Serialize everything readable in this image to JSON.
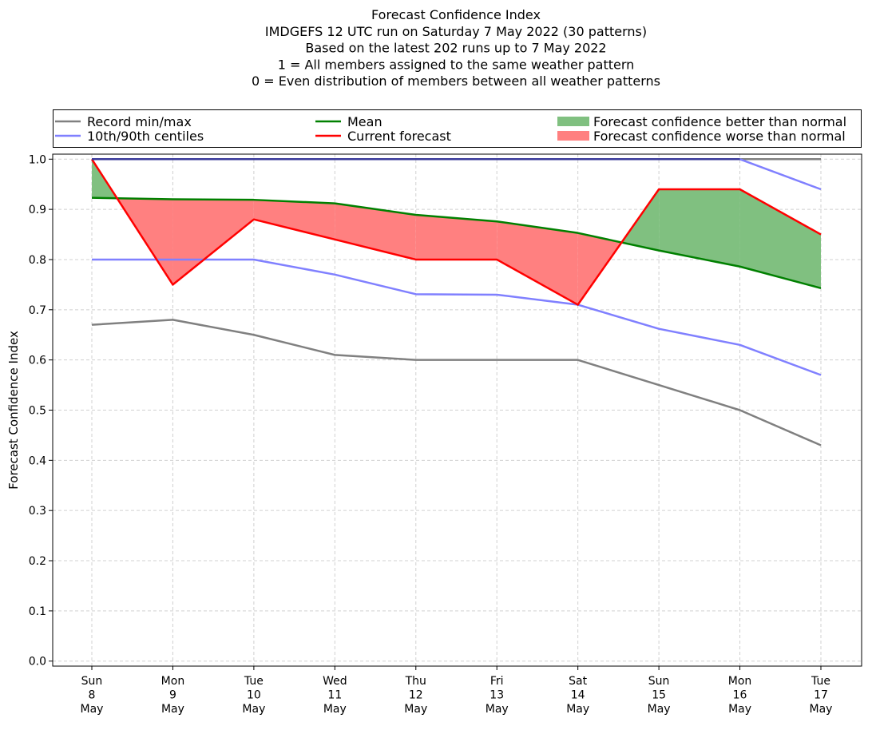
{
  "chart_data": {
    "type": "line",
    "title_lines": [
      "Forecast Confidence Index",
      "IMDGEFS 12 UTC run on Saturday 7 May 2022 (30 patterns)",
      "Based on the latest 202 runs up to 7 May 2022",
      "1 = All members assigned to the same weather pattern",
      "0 = Even distribution of members between all weather patterns"
    ],
    "ylabel": "Forecast Confidence Index",
    "ylim": [
      -0.01,
      1.01
    ],
    "yticks": [
      0.0,
      0.1,
      0.2,
      0.3,
      0.4,
      0.5,
      0.6,
      0.7,
      0.8,
      0.9,
      1.0
    ],
    "ytick_labels": [
      "0.0",
      "0.1",
      "0.2",
      "0.3",
      "0.4",
      "0.5",
      "0.6",
      "0.7",
      "0.8",
      "0.9",
      "1.0"
    ],
    "grid": true,
    "categories": [
      [
        "Sun",
        "8",
        "May"
      ],
      [
        "Mon",
        "9",
        "May"
      ],
      [
        "Tue",
        "10",
        "May"
      ],
      [
        "Wed",
        "11",
        "May"
      ],
      [
        "Thu",
        "12",
        "May"
      ],
      [
        "Fri",
        "13",
        "May"
      ],
      [
        "Sat",
        "14",
        "May"
      ],
      [
        "Sun",
        "15",
        "May"
      ],
      [
        "Mon",
        "16",
        "May"
      ],
      [
        "Tue",
        "17",
        "May"
      ]
    ],
    "series": [
      {
        "name": "Record min/max",
        "role": "record_max",
        "color": "#808080",
        "values": [
          1.0,
          1.0,
          1.0,
          1.0,
          1.0,
          1.0,
          1.0,
          1.0,
          1.0,
          1.0
        ]
      },
      {
        "role": "record_min",
        "color": "#808080",
        "values": [
          0.67,
          0.68,
          0.65,
          0.61,
          0.6,
          0.6,
          0.6,
          0.55,
          0.5,
          0.43
        ]
      },
      {
        "name": "10th/90th centiles",
        "role": "p90",
        "color": "#8080ff",
        "values": [
          1.0,
          1.0,
          1.0,
          1.0,
          1.0,
          1.0,
          1.0,
          1.0,
          1.0,
          0.94
        ]
      },
      {
        "role": "p10",
        "color": "#8080ff",
        "values": [
          0.8,
          0.8,
          0.8,
          0.77,
          0.731,
          0.73,
          0.71,
          0.662,
          0.63,
          0.57
        ]
      },
      {
        "name": "Mean",
        "role": "mean",
        "color": "#008000",
        "values": [
          0.923,
          0.92,
          0.919,
          0.912,
          0.889,
          0.876,
          0.853,
          0.818,
          0.786,
          0.743
        ]
      },
      {
        "name": "Current forecast",
        "role": "current",
        "color": "#ff0000",
        "values": [
          1.0,
          0.75,
          0.88,
          0.84,
          0.8,
          0.8,
          0.71,
          0.94,
          0.94,
          0.85
        ]
      }
    ],
    "legend": {
      "placement": "top, above plot",
      "items": [
        {
          "label": "Record min/max",
          "color": "#808080",
          "kind": "line"
        },
        {
          "label": "Mean",
          "color": "#008000",
          "kind": "line"
        },
        {
          "label": "Forecast confidence better than normal",
          "color": "#80c080",
          "kind": "patch"
        },
        {
          "label": "10th/90th centiles",
          "color": "#8080ff",
          "kind": "line"
        },
        {
          "label": "Current forecast",
          "color": "#ff0000",
          "kind": "line"
        },
        {
          "label": "Forecast confidence worse than normal",
          "color": "#ff8080",
          "kind": "patch"
        }
      ]
    },
    "fill_better_color": "#80c080",
    "fill_worse_color": "#ff8080"
  }
}
